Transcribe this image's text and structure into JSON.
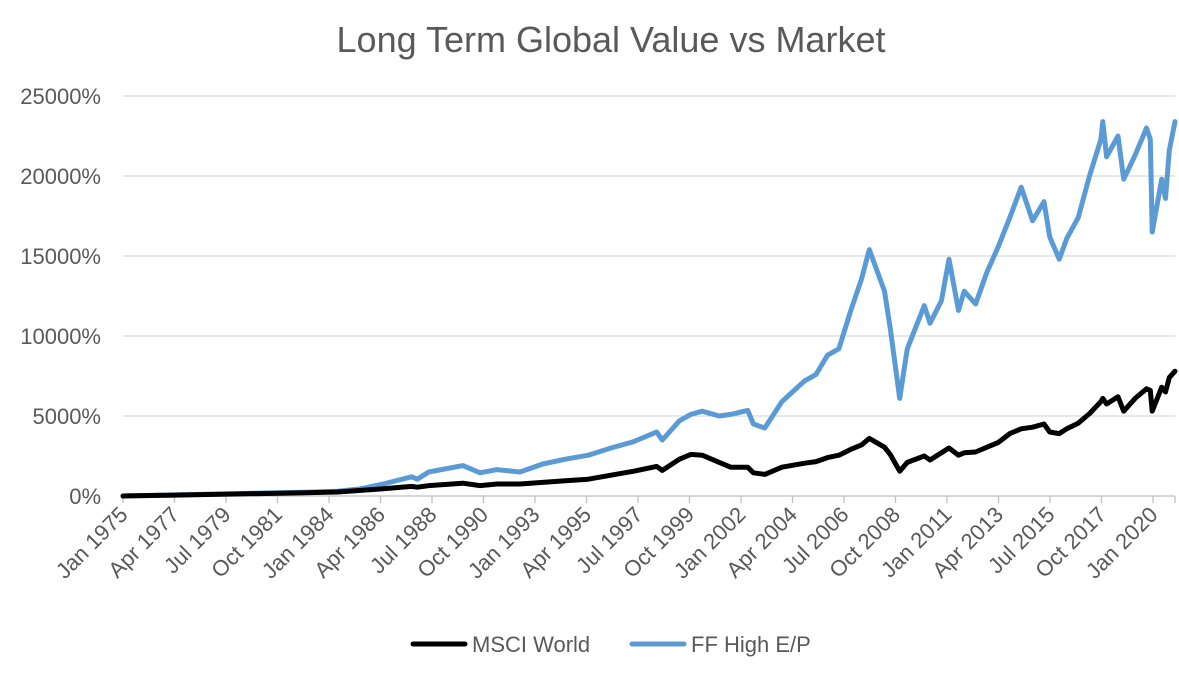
{
  "chart_data": {
    "type": "line",
    "title": "Long Term Global Value vs Market",
    "xlabel": "",
    "ylabel": "",
    "ylim": [
      0,
      25000
    ],
    "y_unit": "%",
    "y_ticks": [
      "0%",
      "5000%",
      "10000%",
      "15000%",
      "20000%",
      "25000%"
    ],
    "y_tick_values": [
      0,
      5000,
      10000,
      15000,
      20000,
      25000
    ],
    "x_ticks": [
      "Jan 1975",
      "Apr 1977",
      "Jul 1979",
      "Oct 1981",
      "Jan 1984",
      "Apr 1986",
      "Jul 1988",
      "Oct 1990",
      "Jan 1993",
      "Apr 1995",
      "Jul 1997",
      "Oct 1999",
      "Jan 2002",
      "Apr 2004",
      "Jul 2006",
      "Oct 2008",
      "Jan 2011",
      "Apr 2013",
      "Jul 2015",
      "Oct 2017",
      "Jan 2020"
    ],
    "x_range": [
      "1975-01",
      "2021-03"
    ],
    "grid": true,
    "legend_position": "bottom",
    "series": [
      {
        "name": "MSCI World",
        "color": "#000000",
        "points": [
          [
            "1975-01",
            0
          ],
          [
            "1977-01",
            50
          ],
          [
            "1979-01",
            100
          ],
          [
            "1981-01",
            150
          ],
          [
            "1983-01",
            200
          ],
          [
            "1984-06",
            250
          ],
          [
            "1985-06",
            350
          ],
          [
            "1986-06",
            450
          ],
          [
            "1987-09",
            600
          ],
          [
            "1987-12",
            550
          ],
          [
            "1988-06",
            650
          ],
          [
            "1989-12",
            800
          ],
          [
            "1990-09",
            650
          ],
          [
            "1991-06",
            750
          ],
          [
            "1992-06",
            750
          ],
          [
            "1993-06",
            850
          ],
          [
            "1994-06",
            950
          ],
          [
            "1995-06",
            1050
          ],
          [
            "1996-06",
            1300
          ],
          [
            "1997-06",
            1550
          ],
          [
            "1998-06",
            1850
          ],
          [
            "1998-09",
            1600
          ],
          [
            "1999-06",
            2300
          ],
          [
            "1999-12",
            2600
          ],
          [
            "2000-06",
            2550
          ],
          [
            "2001-03",
            2100
          ],
          [
            "2001-09",
            1800
          ],
          [
            "2002-06",
            1800
          ],
          [
            "2002-09",
            1450
          ],
          [
            "2003-03",
            1350
          ],
          [
            "2003-12",
            1800
          ],
          [
            "2004-12",
            2050
          ],
          [
            "2005-06",
            2150
          ],
          [
            "2005-12",
            2400
          ],
          [
            "2006-06",
            2550
          ],
          [
            "2006-12",
            2900
          ],
          [
            "2007-06",
            3200
          ],
          [
            "2007-10",
            3600
          ],
          [
            "2008-06",
            3050
          ],
          [
            "2008-09",
            2600
          ],
          [
            "2009-02",
            1550
          ],
          [
            "2009-06",
            2100
          ],
          [
            "2010-03",
            2500
          ],
          [
            "2010-06",
            2250
          ],
          [
            "2010-12",
            2700
          ],
          [
            "2011-04",
            3000
          ],
          [
            "2011-09",
            2550
          ],
          [
            "2011-12",
            2700
          ],
          [
            "2012-06",
            2750
          ],
          [
            "2012-12",
            3050
          ],
          [
            "2013-06",
            3350
          ],
          [
            "2013-12",
            3900
          ],
          [
            "2014-06",
            4200
          ],
          [
            "2014-12",
            4300
          ],
          [
            "2015-06",
            4500
          ],
          [
            "2015-09",
            4000
          ],
          [
            "2016-02",
            3900
          ],
          [
            "2016-06",
            4200
          ],
          [
            "2016-12",
            4550
          ],
          [
            "2017-06",
            5150
          ],
          [
            "2017-12",
            5900
          ],
          [
            "2018-01",
            6100
          ],
          [
            "2018-03",
            5750
          ],
          [
            "2018-09",
            6200
          ],
          [
            "2018-12",
            5300
          ],
          [
            "2019-06",
            6100
          ],
          [
            "2019-12",
            6700
          ],
          [
            "2020-02",
            6600
          ],
          [
            "2020-03",
            5300
          ],
          [
            "2020-08",
            6800
          ],
          [
            "2020-10",
            6500
          ],
          [
            "2020-12",
            7400
          ],
          [
            "2021-03",
            7800
          ]
        ]
      },
      {
        "name": "FF High E/P",
        "color": "#5b9bd5",
        "points": [
          [
            "1975-01",
            0
          ],
          [
            "1977-01",
            60
          ],
          [
            "1979-01",
            120
          ],
          [
            "1981-01",
            180
          ],
          [
            "1983-01",
            230
          ],
          [
            "1984-06",
            300
          ],
          [
            "1985-06",
            450
          ],
          [
            "1986-06",
            750
          ],
          [
            "1987-09",
            1200
          ],
          [
            "1987-12",
            1050
          ],
          [
            "1988-06",
            1500
          ],
          [
            "1989-12",
            1900
          ],
          [
            "1990-09",
            1450
          ],
          [
            "1991-06",
            1650
          ],
          [
            "1992-06",
            1500
          ],
          [
            "1993-06",
            2000
          ],
          [
            "1994-06",
            2300
          ],
          [
            "1995-06",
            2550
          ],
          [
            "1996-06",
            3000
          ],
          [
            "1997-06",
            3400
          ],
          [
            "1998-06",
            4000
          ],
          [
            "1998-09",
            3500
          ],
          [
            "1999-06",
            4700
          ],
          [
            "1999-12",
            5100
          ],
          [
            "2000-06",
            5300
          ],
          [
            "2001-03",
            5000
          ],
          [
            "2001-09",
            5100
          ],
          [
            "2002-06",
            5350
          ],
          [
            "2002-09",
            4500
          ],
          [
            "2003-03",
            4250
          ],
          [
            "2003-12",
            5900
          ],
          [
            "2004-12",
            7200
          ],
          [
            "2005-06",
            7600
          ],
          [
            "2005-12",
            8800
          ],
          [
            "2006-06",
            9200
          ],
          [
            "2006-12",
            11500
          ],
          [
            "2007-06",
            13600
          ],
          [
            "2007-10",
            15400
          ],
          [
            "2008-06",
            12800
          ],
          [
            "2008-09",
            10500
          ],
          [
            "2009-02",
            6100
          ],
          [
            "2009-06",
            9200
          ],
          [
            "2010-03",
            11900
          ],
          [
            "2010-06",
            10800
          ],
          [
            "2010-12",
            12200
          ],
          [
            "2011-04",
            14800
          ],
          [
            "2011-09",
            11600
          ],
          [
            "2011-12",
            12800
          ],
          [
            "2012-06",
            12000
          ],
          [
            "2012-12",
            14000
          ],
          [
            "2013-06",
            15600
          ],
          [
            "2013-12",
            17400
          ],
          [
            "2014-06",
            19300
          ],
          [
            "2014-12",
            17200
          ],
          [
            "2015-06",
            18400
          ],
          [
            "2015-09",
            16200
          ],
          [
            "2016-02",
            14800
          ],
          [
            "2016-06",
            16100
          ],
          [
            "2016-12",
            17400
          ],
          [
            "2017-06",
            20000
          ],
          [
            "2017-12",
            22300
          ],
          [
            "2018-01",
            23400
          ],
          [
            "2018-03",
            21200
          ],
          [
            "2018-09",
            22500
          ],
          [
            "2018-12",
            19800
          ],
          [
            "2019-06",
            21300
          ],
          [
            "2019-12",
            23000
          ],
          [
            "2020-02",
            22300
          ],
          [
            "2020-03",
            16500
          ],
          [
            "2020-08",
            19800
          ],
          [
            "2020-10",
            18600
          ],
          [
            "2020-12",
            21600
          ],
          [
            "2021-03",
            23400
          ]
        ]
      }
    ]
  }
}
